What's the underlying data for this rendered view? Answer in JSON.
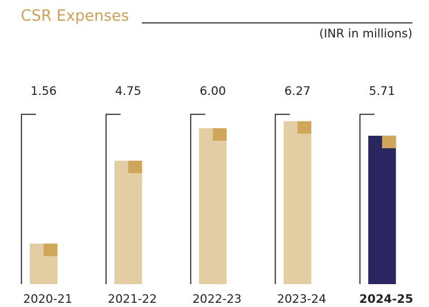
{
  "chart_data": {
    "type": "bar",
    "title": "CSR Expenses",
    "subtitle": "(INR in millions)",
    "categories": [
      "2020-21",
      "2021-22",
      "2022-23",
      "2023-24",
      "2024-25"
    ],
    "values": [
      1.56,
      4.75,
      6.0,
      6.27,
      5.71
    ],
    "value_labels": [
      "1.56",
      "4.75",
      "6.00",
      "6.27",
      "5.71"
    ],
    "color": "#e3cda3",
    "colors": [
      "#e3cda3",
      "#e3cda3",
      "#e3cda3",
      "#e3cda3",
      "#2b2660"
    ],
    "accent_color": "#cfa65a"
  }
}
